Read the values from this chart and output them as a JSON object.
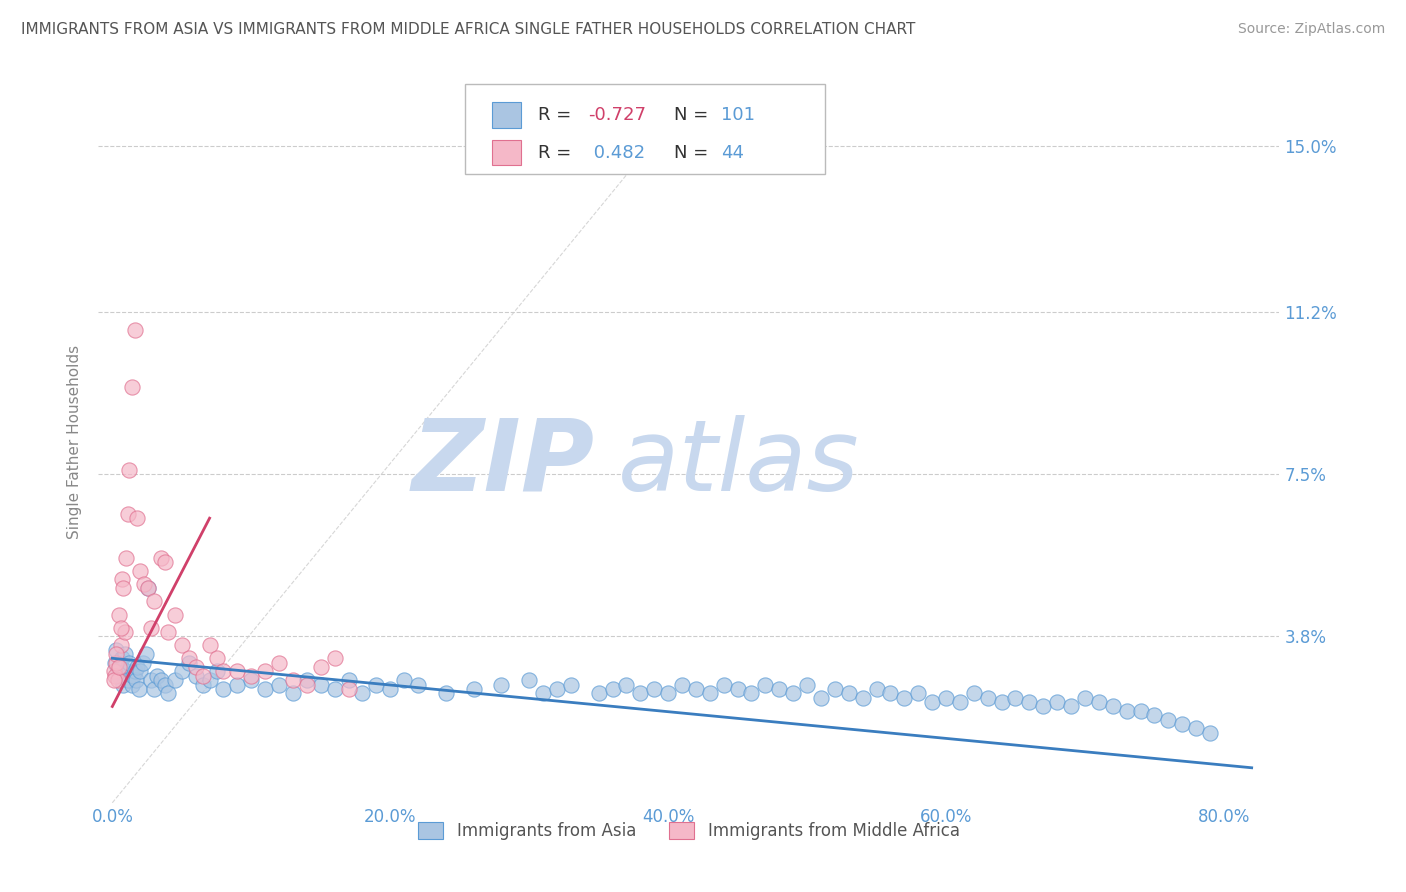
{
  "title": "IMMIGRANTS FROM ASIA VS IMMIGRANTS FROM MIDDLE AFRICA SINGLE FATHER HOUSEHOLDS CORRELATION CHART",
  "source": "Source: ZipAtlas.com",
  "ylabel": "Single Father Households",
  "x_tick_labels": [
    "0.0%",
    "20.0%",
    "40.0%",
    "60.0%",
    "80.0%"
  ],
  "x_tick_values": [
    0.0,
    20.0,
    40.0,
    60.0,
    80.0
  ],
  "y_tick_labels": [
    "3.8%",
    "7.5%",
    "11.2%",
    "15.0%"
  ],
  "y_tick_values": [
    3.8,
    7.5,
    11.2,
    15.0
  ],
  "xlim": [
    -1.0,
    84.0
  ],
  "ylim": [
    0.0,
    16.5
  ],
  "legend_labels": [
    "Immigrants from Asia",
    "Immigrants from Middle Africa"
  ],
  "R_blue": -0.727,
  "N_blue": 101,
  "R_pink": 0.482,
  "N_pink": 44,
  "color_blue": "#aac5e2",
  "color_pink": "#f5b8c8",
  "edge_blue": "#5b9bd5",
  "edge_pink": "#e07090",
  "line_color_blue": "#3a7dbf",
  "line_color_pink": "#d0406a",
  "watermark_zip_color": "#c8d8ee",
  "watermark_atlas_color": "#c8d8ee",
  "blue_scatter_x": [
    0.2,
    0.3,
    0.4,
    0.5,
    0.6,
    0.7,
    0.8,
    0.9,
    1.0,
    1.1,
    1.2,
    1.4,
    1.5,
    1.6,
    1.7,
    1.8,
    1.9,
    2.0,
    2.2,
    2.4,
    2.6,
    2.8,
    3.0,
    3.2,
    3.5,
    3.8,
    4.0,
    4.5,
    5.0,
    5.5,
    6.0,
    6.5,
    7.0,
    7.5,
    8.0,
    9.0,
    10.0,
    11.0,
    12.0,
    13.0,
    14.0,
    15.0,
    16.0,
    17.0,
    18.0,
    19.0,
    20.0,
    21.0,
    22.0,
    24.0,
    26.0,
    28.0,
    30.0,
    31.0,
    32.0,
    33.0,
    35.0,
    36.0,
    37.0,
    38.0,
    39.0,
    40.0,
    41.0,
    42.0,
    43.0,
    44.0,
    45.0,
    46.0,
    47.0,
    48.0,
    49.0,
    50.0,
    51.0,
    52.0,
    53.0,
    54.0,
    55.0,
    56.0,
    57.0,
    58.0,
    59.0,
    60.0,
    61.0,
    62.0,
    63.0,
    64.0,
    65.0,
    66.0,
    67.0,
    68.0,
    69.0,
    70.0,
    71.0,
    72.0,
    73.0,
    74.0,
    75.0,
    76.0,
    77.0,
    78.0,
    79.0
  ],
  "blue_scatter_y": [
    3.2,
    3.5,
    3.0,
    2.9,
    3.1,
    3.3,
    2.7,
    3.4,
    3.0,
    2.8,
    3.2,
    2.7,
    2.9,
    3.0,
    2.8,
    3.1,
    2.6,
    3.0,
    3.2,
    3.4,
    4.9,
    2.8,
    2.6,
    2.9,
    2.8,
    2.7,
    2.5,
    2.8,
    3.0,
    3.2,
    2.9,
    2.7,
    2.8,
    3.0,
    2.6,
    2.7,
    2.8,
    2.6,
    2.7,
    2.5,
    2.8,
    2.7,
    2.6,
    2.8,
    2.5,
    2.7,
    2.6,
    2.8,
    2.7,
    2.5,
    2.6,
    2.7,
    2.8,
    2.5,
    2.6,
    2.7,
    2.5,
    2.6,
    2.7,
    2.5,
    2.6,
    2.5,
    2.7,
    2.6,
    2.5,
    2.7,
    2.6,
    2.5,
    2.7,
    2.6,
    2.5,
    2.7,
    2.4,
    2.6,
    2.5,
    2.4,
    2.6,
    2.5,
    2.4,
    2.5,
    2.3,
    2.4,
    2.3,
    2.5,
    2.4,
    2.3,
    2.4,
    2.3,
    2.2,
    2.3,
    2.2,
    2.4,
    2.3,
    2.2,
    2.1,
    2.1,
    2.0,
    1.9,
    1.8,
    1.7,
    1.6
  ],
  "pink_scatter_x": [
    0.1,
    0.2,
    0.3,
    0.4,
    0.5,
    0.6,
    0.7,
    0.8,
    0.9,
    1.0,
    1.1,
    1.2,
    1.4,
    1.6,
    1.8,
    2.0,
    2.3,
    2.6,
    3.0,
    3.5,
    4.0,
    4.5,
    5.0,
    5.5,
    6.0,
    6.5,
    7.0,
    7.5,
    8.0,
    9.0,
    10.0,
    11.0,
    12.0,
    13.0,
    14.0,
    15.0,
    16.0,
    17.0,
    2.8,
    3.8,
    0.15,
    0.25,
    0.45,
    0.65
  ],
  "pink_scatter_y": [
    3.0,
    2.9,
    3.2,
    2.8,
    4.3,
    3.6,
    5.1,
    4.9,
    3.9,
    5.6,
    6.6,
    7.6,
    9.5,
    10.8,
    6.5,
    5.3,
    5.0,
    4.9,
    4.6,
    5.6,
    3.9,
    4.3,
    3.6,
    3.3,
    3.1,
    2.9,
    3.6,
    3.3,
    3.0,
    3.0,
    2.9,
    3.0,
    3.2,
    2.8,
    2.7,
    3.1,
    3.3,
    2.6,
    4.0,
    5.5,
    2.8,
    3.4,
    3.1,
    4.0
  ]
}
